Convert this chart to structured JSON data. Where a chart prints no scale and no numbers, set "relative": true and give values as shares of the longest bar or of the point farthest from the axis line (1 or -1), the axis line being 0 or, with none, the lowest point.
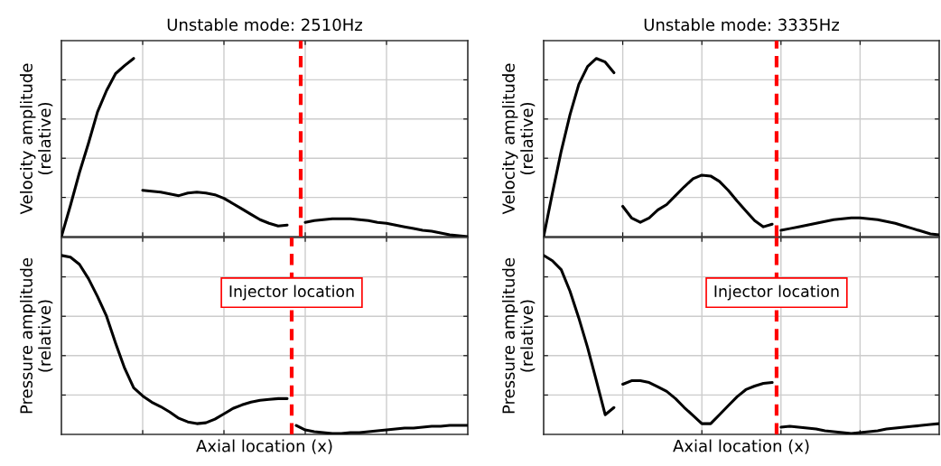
{
  "chart_data": [
    {
      "type": "line",
      "title": "Unstable mode: 2510Hz",
      "ylabel": "Velocity amplitude\n(relative)",
      "relative": true,
      "grid": true,
      "tick_labels": false,
      "categories": [
        null,
        null,
        null,
        null,
        null,
        null,
        null,
        null,
        null,
        null,
        null,
        null,
        null,
        null,
        null,
        null,
        null,
        null,
        null,
        null,
        null,
        null,
        null,
        null,
        null,
        null,
        null,
        null,
        null,
        null,
        null,
        null,
        null,
        null,
        null,
        null,
        null,
        null,
        null,
        null,
        null,
        null,
        null,
        null,
        null,
        null
      ],
      "series": [
        {
          "color": "#000000",
          "values": [
            0,
            0.175,
            0.36,
            0.525,
            0.7,
            0.82,
            0.915,
            0.96,
            1.0,
            null,
            null,
            null,
            null,
            null,
            null,
            null,
            null,
            null,
            null,
            null,
            null,
            null,
            null,
            null,
            null,
            null,
            null,
            null,
            null,
            null,
            null,
            null,
            null,
            null,
            null,
            null,
            null,
            null,
            null,
            null,
            null,
            null,
            null,
            null,
            null,
            null
          ]
        },
        {
          "color": "#000000",
          "values": [
            null,
            null,
            null,
            null,
            null,
            null,
            null,
            null,
            null,
            0.26,
            0.255,
            0.25,
            0.24,
            0.23,
            0.245,
            0.25,
            0.245,
            0.235,
            0.215,
            0.185,
            0.155,
            0.125,
            0.095,
            0.075,
            0.06,
            0.065,
            null,
            null,
            null,
            null,
            null,
            null,
            null,
            null,
            null,
            null,
            null,
            null,
            null,
            null,
            null,
            null,
            null,
            null,
            null,
            null
          ]
        },
        {
          "color": "#000000",
          "values": [
            null,
            null,
            null,
            null,
            null,
            null,
            null,
            null,
            null,
            null,
            null,
            null,
            null,
            null,
            null,
            null,
            null,
            null,
            null,
            null,
            null,
            null,
            null,
            null,
            null,
            null,
            null,
            0.08,
            0.09,
            0.095,
            0.1,
            0.1,
            0.1,
            0.095,
            0.09,
            0.08,
            0.075,
            0.065,
            0.055,
            0.045,
            0.035,
            0.03,
            0.02,
            0.01,
            0.005,
            0
          ]
        }
      ]
    },
    {
      "type": "line",
      "title": "Unstable mode: 3335Hz",
      "ylabel": "Velocity amplitude\n(relative)",
      "relative": true,
      "grid": true,
      "tick_labels": false,
      "categories": [
        null,
        null,
        null,
        null,
        null,
        null,
        null,
        null,
        null,
        null,
        null,
        null,
        null,
        null,
        null,
        null,
        null,
        null,
        null,
        null,
        null,
        null,
        null,
        null,
        null,
        null,
        null,
        null,
        null,
        null,
        null,
        null,
        null,
        null,
        null,
        null,
        null,
        null,
        null,
        null,
        null,
        null,
        null,
        null,
        null,
        null
      ],
      "series": [
        {
          "color": "#000000",
          "values": [
            0,
            0.245,
            0.48,
            0.685,
            0.855,
            0.955,
            1.0,
            0.98,
            0.92,
            null,
            null,
            null,
            null,
            null,
            null,
            null,
            null,
            null,
            null,
            null,
            null,
            null,
            null,
            null,
            null,
            null,
            null,
            null,
            null,
            null,
            null,
            null,
            null,
            null,
            null,
            null,
            null,
            null,
            null,
            null,
            null,
            null,
            null,
            null,
            null,
            null
          ]
        },
        {
          "color": "#000000",
          "values": [
            null,
            null,
            null,
            null,
            null,
            null,
            null,
            null,
            null,
            0.17,
            0.105,
            0.08,
            0.105,
            0.15,
            0.18,
            0.23,
            0.28,
            0.325,
            0.345,
            0.34,
            0.31,
            0.26,
            0.2,
            0.145,
            0.09,
            0.055,
            0.07,
            null,
            null,
            null,
            null,
            null,
            null,
            null,
            null,
            null,
            null,
            null,
            null,
            null,
            null,
            null,
            null,
            null,
            null,
            null
          ]
        },
        {
          "color": "#000000",
          "values": [
            null,
            null,
            null,
            null,
            null,
            null,
            null,
            null,
            null,
            null,
            null,
            null,
            null,
            null,
            null,
            null,
            null,
            null,
            null,
            null,
            null,
            null,
            null,
            null,
            null,
            null,
            null,
            0.035,
            0.045,
            0.055,
            0.065,
            0.075,
            0.085,
            0.095,
            0.1,
            0.105,
            0.105,
            0.1,
            0.095,
            0.085,
            0.075,
            0.06,
            0.045,
            0.03,
            0.015,
            0.01
          ]
        }
      ]
    },
    {
      "type": "line",
      "xlabel": "Axial location (x)",
      "ylabel": "Pressure amplitude\n(relative)",
      "relative": true,
      "grid": true,
      "tick_labels": false,
      "categories": [
        null,
        null,
        null,
        null,
        null,
        null,
        null,
        null,
        null,
        null,
        null,
        null,
        null,
        null,
        null,
        null,
        null,
        null,
        null,
        null,
        null,
        null,
        null,
        null,
        null,
        null,
        null,
        null,
        null,
        null,
        null,
        null,
        null,
        null,
        null,
        null,
        null,
        null,
        null,
        null,
        null,
        null,
        null,
        null,
        null,
        null
      ],
      "series": [
        {
          "color": "#000000",
          "values": [
            1.0,
            0.99,
            0.95,
            0.87,
            0.77,
            0.66,
            0.51,
            0.37,
            0.26,
            0.215,
            0.18,
            0.155,
            0.125,
            0.09,
            0.07,
            0.06,
            0.065,
            0.085,
            0.115,
            0.145,
            0.165,
            0.18,
            0.19,
            0.195,
            0.2,
            0.2,
            null,
            null,
            null,
            null,
            null,
            null,
            null,
            null,
            null,
            null,
            null,
            null,
            null,
            null,
            null,
            null,
            null,
            null,
            null,
            null
          ]
        },
        {
          "color": "#000000",
          "values": [
            null,
            null,
            null,
            null,
            null,
            null,
            null,
            null,
            null,
            null,
            null,
            null,
            null,
            null,
            null,
            null,
            null,
            null,
            null,
            null,
            null,
            null,
            null,
            null,
            null,
            null,
            0.05,
            0.025,
            0.015,
            0.01,
            0.005,
            0.005,
            0.01,
            0.01,
            0.015,
            0.02,
            0.025,
            0.03,
            0.035,
            0.035,
            0.04,
            0.045,
            0.045,
            0.05,
            0.05,
            0.05
          ]
        }
      ],
      "annotations": [
        "Injector location"
      ]
    },
    {
      "type": "line",
      "xlabel": "Axial location (x)",
      "ylabel": "Pressure amplitude\n(relative)",
      "relative": true,
      "grid": true,
      "tick_labels": false,
      "categories": [
        null,
        null,
        null,
        null,
        null,
        null,
        null,
        null,
        null,
        null,
        null,
        null,
        null,
        null,
        null,
        null,
        null,
        null,
        null,
        null,
        null,
        null,
        null,
        null,
        null,
        null,
        null,
        null,
        null,
        null,
        null,
        null,
        null,
        null,
        null,
        null,
        null,
        null,
        null,
        null,
        null,
        null,
        null,
        null,
        null,
        null
      ],
      "series": [
        {
          "color": "#000000",
          "values": [
            1.0,
            0.97,
            0.92,
            0.8,
            0.65,
            0.485,
            0.3,
            0.11,
            0.15,
            null,
            null,
            null,
            null,
            null,
            null,
            null,
            null,
            null,
            null,
            null,
            null,
            null,
            null,
            null,
            null,
            null,
            null,
            null,
            null,
            null,
            null,
            null,
            null,
            null,
            null,
            null,
            null,
            null,
            null,
            null,
            null,
            null,
            null,
            null,
            null,
            null
          ]
        },
        {
          "color": "#000000",
          "values": [
            null,
            null,
            null,
            null,
            null,
            null,
            null,
            null,
            null,
            0.28,
            0.3,
            0.3,
            0.29,
            0.265,
            0.24,
            0.2,
            0.15,
            0.105,
            0.06,
            0.06,
            0.11,
            0.16,
            0.21,
            0.25,
            0.27,
            0.285,
            0.29,
            null,
            null,
            null,
            null,
            null,
            null,
            null,
            null,
            null,
            null,
            null,
            null,
            null,
            null,
            null,
            null,
            null,
            null,
            null
          ]
        },
        {
          "color": "#000000",
          "values": [
            null,
            null,
            null,
            null,
            null,
            null,
            null,
            null,
            null,
            null,
            null,
            null,
            null,
            null,
            null,
            null,
            null,
            null,
            null,
            null,
            null,
            null,
            null,
            null,
            null,
            null,
            null,
            0.04,
            0.045,
            0.04,
            0.035,
            0.03,
            0.02,
            0.015,
            0.01,
            0.005,
            0.01,
            0.015,
            0.02,
            0.03,
            0.035,
            0.04,
            0.045,
            0.05,
            0.055,
            0.06
          ]
        }
      ],
      "annotations": [
        "Injector location"
      ]
    }
  ]
}
